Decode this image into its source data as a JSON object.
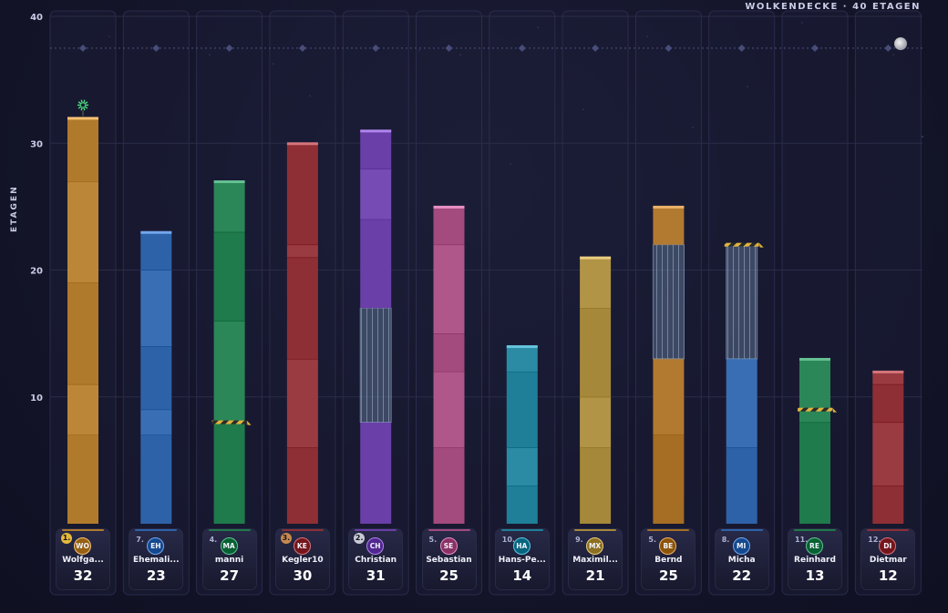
{
  "title": "WOLKENDECKE · 40 ETAGEN",
  "chart_data": {
    "type": "bar",
    "ylabel": "ETAGEN",
    "ylim": [
      0,
      40
    ],
    "yticks": [
      10,
      20,
      30,
      40
    ],
    "ceiling": 37.5,
    "players": [
      {
        "rank": "1.",
        "initials": "WO",
        "name": "Wolfga...",
        "floors": 32,
        "color": "#b07a2c",
        "medal": "#e6b93a",
        "segments": [
          {
            "from": 0,
            "to": 7
          },
          {
            "from": 7,
            "to": 11
          },
          {
            "from": 11,
            "to": 19
          },
          {
            "from": 19,
            "to": 27
          },
          {
            "from": 27,
            "to": 32
          }
        ]
      },
      {
        "rank": "7.",
        "initials": "EH",
        "name": "Ehemali...",
        "floors": 23,
        "color": "#2e62a8",
        "segments": [
          {
            "from": 0,
            "to": 7
          },
          {
            "from": 7,
            "to": 9
          },
          {
            "from": 9,
            "to": 14
          },
          {
            "from": 14,
            "to": 20
          },
          {
            "from": 20,
            "to": 23
          }
        ]
      },
      {
        "rank": "4.",
        "initials": "MA",
        "name": "manni",
        "floors": 27,
        "color": "#1f7a4c",
        "hazard": 8,
        "segments": [
          {
            "from": 0,
            "to": 8
          },
          {
            "from": 8,
            "to": 16
          },
          {
            "from": 16,
            "to": 23
          },
          {
            "from": 23,
            "to": 27
          }
        ]
      },
      {
        "rank": "3.",
        "initials": "KE",
        "name": "Kegler10",
        "floors": 30,
        "color": "#8e2f35",
        "medal": "#c98a4f",
        "segments": [
          {
            "from": 0,
            "to": 6
          },
          {
            "from": 6,
            "to": 13
          },
          {
            "from": 13,
            "to": 21
          },
          {
            "from": 21,
            "to": 22
          },
          {
            "from": 22,
            "to": 30
          }
        ]
      },
      {
        "rank": "2.",
        "initials": "CH",
        "name": "Christian",
        "floors": 31,
        "color": "#6a3fa8",
        "medal": "#c8cbd8",
        "segments": [
          {
            "from": 0,
            "to": 8
          },
          {
            "from": 8,
            "to": 17,
            "glass": true
          },
          {
            "from": 17,
            "to": 24
          },
          {
            "from": 24,
            "to": 28
          },
          {
            "from": 28,
            "to": 31
          }
        ]
      },
      {
        "rank": "5.",
        "initials": "SE",
        "name": "Sebastian",
        "floors": 25,
        "color": "#a34a7e",
        "segments": [
          {
            "from": 0,
            "to": 6
          },
          {
            "from": 6,
            "to": 12
          },
          {
            "from": 12,
            "to": 15
          },
          {
            "from": 15,
            "to": 22
          },
          {
            "from": 22,
            "to": 25
          }
        ]
      },
      {
        "rank": "10.",
        "initials": "HA",
        "name": "Hans-Pe...",
        "floors": 14,
        "color": "#1f7f98",
        "segments": [
          {
            "from": 0,
            "to": 3
          },
          {
            "from": 3,
            "to": 6
          },
          {
            "from": 6,
            "to": 12
          },
          {
            "from": 12,
            "to": 14
          }
        ]
      },
      {
        "rank": "9.",
        "initials": "MX",
        "name": "Maximil...",
        "floors": 21,
        "color": "#a6883a",
        "segments": [
          {
            "from": 0,
            "to": 6
          },
          {
            "from": 6,
            "to": 10
          },
          {
            "from": 10,
            "to": 17
          },
          {
            "from": 17,
            "to": 21
          }
        ]
      },
      {
        "rank": "5.",
        "initials": "BE",
        "name": "Bernd",
        "floors": 25,
        "color": "#a66d24",
        "segments": [
          {
            "from": 0,
            "to": 7
          },
          {
            "from": 7,
            "to": 13
          },
          {
            "from": 13,
            "to": 22,
            "glass": true
          },
          {
            "from": 22,
            "to": 25
          }
        ]
      },
      {
        "rank": "8.",
        "initials": "MI",
        "name": "Micha",
        "floors": 22,
        "color": "#2e62a8",
        "hazard": 22,
        "segments": [
          {
            "from": 0,
            "to": 6
          },
          {
            "from": 6,
            "to": 13
          },
          {
            "from": 13,
            "to": 22,
            "glass": true
          }
        ]
      },
      {
        "rank": "11.",
        "initials": "RE",
        "name": "Reinhard",
        "floors": 13,
        "color": "#1f7a4c",
        "hazard": 9,
        "segments": [
          {
            "from": 0,
            "to": 8
          },
          {
            "from": 8,
            "to": 13
          }
        ]
      },
      {
        "rank": "12.",
        "initials": "DI",
        "name": "Dietmar",
        "floors": 12,
        "color": "#8e2f35",
        "segments": [
          {
            "from": 0,
            "to": 3
          },
          {
            "from": 3,
            "to": 8
          },
          {
            "from": 8,
            "to": 11
          },
          {
            "from": 11,
            "to": 12
          }
        ]
      }
    ]
  },
  "colors": {
    "background": "#15162b",
    "grid": "#2a2c48",
    "ceiling": "#5a5f8c",
    "glass": "#7d9cc0",
    "hazard_stripe_a": "#e0b43c",
    "hazard_stripe_b": "#2a2a2a",
    "firework": "#4ade80"
  },
  "icons": {
    "ceiling_marker": "diamond-icon",
    "moon": "moon-icon",
    "firework": "firework-icon"
  }
}
